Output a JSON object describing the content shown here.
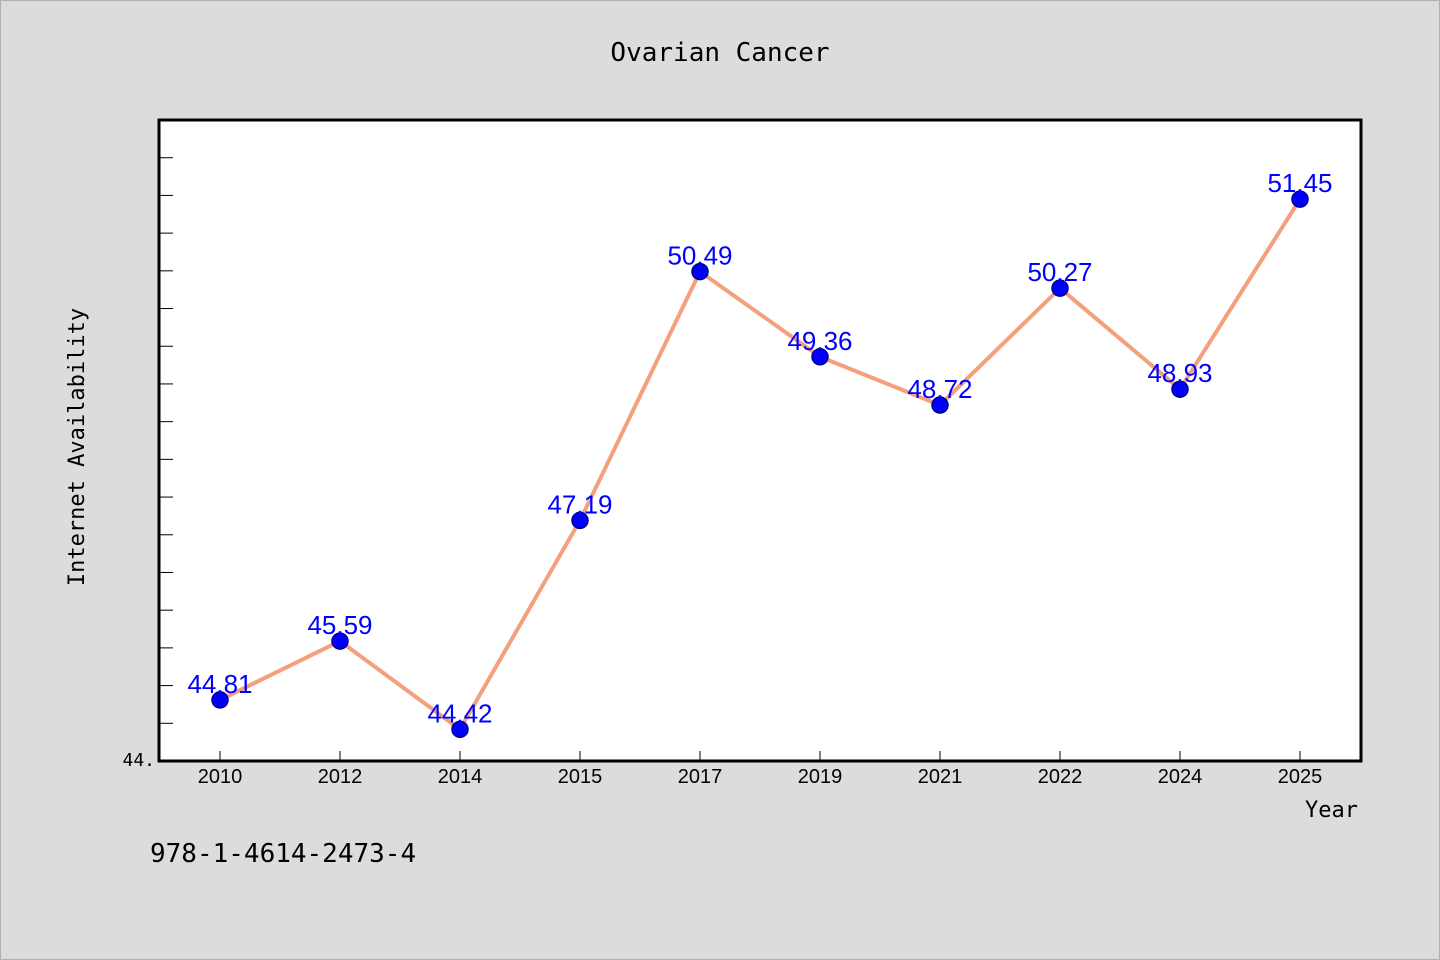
{
  "chart_data": {
    "type": "line",
    "title": "Ovarian Cancer",
    "xlabel": "Year",
    "ylabel": "Internet Availability",
    "categories": [
      "2010",
      "2012",
      "2014",
      "2015",
      "2017",
      "2019",
      "2021",
      "2022",
      "2024",
      "2025"
    ],
    "series": [
      {
        "values": [
          44.81,
          45.59,
          44.42,
          47.19,
          50.49,
          49.36,
          48.72,
          50.27,
          48.93,
          51.45
        ],
        "data_labels": [
          "44.81",
          "45.59",
          "44.42",
          "47.19",
          "50.49",
          "49.36",
          "48.72",
          "50.27",
          "48.93",
          "51.45"
        ]
      }
    ],
    "ylim": [
      44.0,
      52.5
    ],
    "y_tick_label": "44.",
    "grid": false,
    "legend": "none",
    "colors": {
      "line": "#f4a07c",
      "marker": "#0000ff",
      "marker_edge": "#00008b",
      "data_label": "#0000ff",
      "plot_background": "#ffffff",
      "figure_background": "#dcdcdc"
    }
  },
  "footer_text": "978-1-4614-2473-4"
}
